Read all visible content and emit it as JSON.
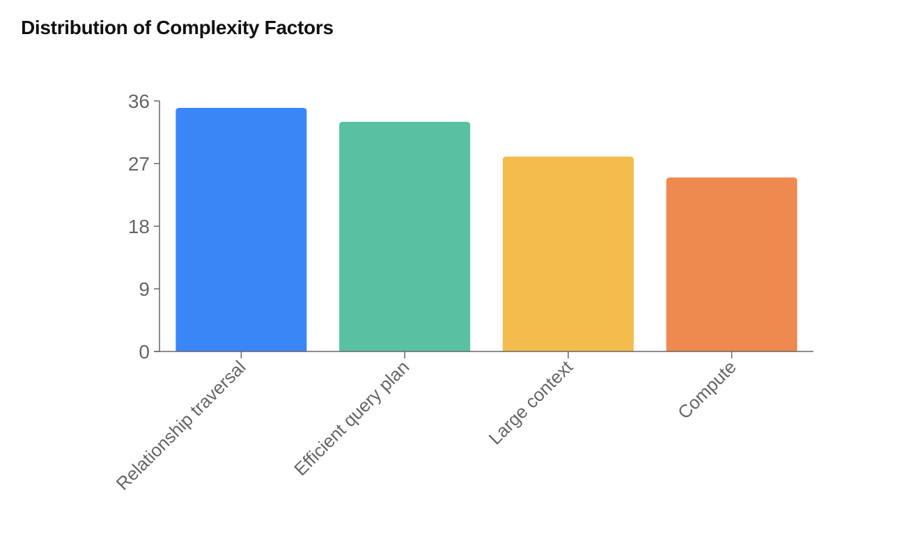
{
  "chart_data": {
    "type": "bar",
    "title": "Distribution of Complexity Factors",
    "xlabel": "",
    "ylabel": "",
    "categories": [
      "Relationship traversal",
      "Efficient query plan",
      "Large context",
      "Compute"
    ],
    "values": [
      35,
      33,
      28,
      25
    ],
    "colors": [
      "#3b86f7",
      "#59c1a2",
      "#f3bc4c",
      "#ee8950"
    ],
    "yticks": [
      "0",
      "9",
      "18",
      "27",
      "36"
    ],
    "ylim": [
      0,
      36
    ],
    "grid": false,
    "legend": "none"
  }
}
